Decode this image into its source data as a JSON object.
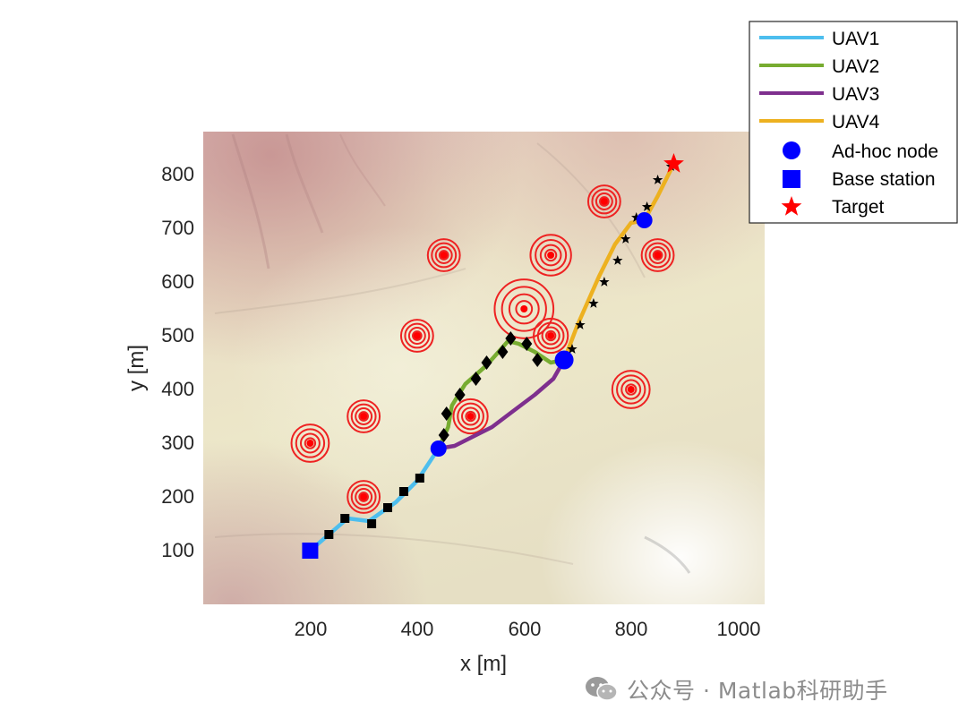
{
  "chart_data": {
    "type": "scatter",
    "xlabel": "x [m]",
    "ylabel": "y [m]",
    "xlim": [
      0,
      1050
    ],
    "ylim": [
      0,
      880
    ],
    "xticks": [
      200,
      400,
      600,
      800,
      1000
    ],
    "yticks": [
      100,
      200,
      300,
      400,
      500,
      600,
      700,
      800
    ],
    "background": "terrain map",
    "legend_position": "top-right",
    "series": [
      {
        "name": "UAV1",
        "kind": "line",
        "color": "#4DBEEE",
        "points": [
          [
            200,
            100
          ],
          [
            270,
            160
          ],
          [
            310,
            155
          ],
          [
            360,
            190
          ],
          [
            400,
            230
          ],
          [
            440,
            290
          ]
        ]
      },
      {
        "name": "UAV2",
        "kind": "line",
        "color": "#77AC30",
        "points": [
          [
            440,
            290
          ],
          [
            458,
            330
          ],
          [
            465,
            370
          ],
          [
            490,
            410
          ],
          [
            530,
            445
          ],
          [
            570,
            490
          ],
          [
            590,
            485
          ],
          [
            620,
            470
          ],
          [
            650,
            450
          ],
          [
            675,
            455
          ]
        ]
      },
      {
        "name": "UAV3",
        "kind": "line",
        "color": "#7E2F8E",
        "points": [
          [
            440,
            290
          ],
          [
            470,
            295
          ],
          [
            500,
            310
          ],
          [
            540,
            330
          ],
          [
            580,
            360
          ],
          [
            620,
            390
          ],
          [
            655,
            420
          ],
          [
            675,
            455
          ]
        ]
      },
      {
        "name": "UAV4",
        "kind": "line",
        "color": "#EDB120",
        "points": [
          [
            675,
            455
          ],
          [
            700,
            520
          ],
          [
            740,
            610
          ],
          [
            770,
            670
          ],
          [
            800,
            710
          ],
          [
            825,
            715
          ],
          [
            850,
            760
          ],
          [
            880,
            820
          ]
        ]
      }
    ],
    "markers": [
      {
        "name": "Ad-hoc node",
        "symbol": "circle",
        "color": "#0000FF",
        "points": [
          [
            440,
            290
          ],
          [
            675,
            455
          ],
          [
            825,
            715
          ]
        ]
      },
      {
        "name": "Base station",
        "symbol": "square",
        "color": "#0000FF",
        "points": [
          [
            200,
            100
          ]
        ]
      },
      {
        "name": "Target",
        "symbol": "star",
        "color": "#FF0000",
        "points": [
          [
            880,
            820
          ]
        ]
      }
    ],
    "waypoints": [
      {
        "symbol": "square",
        "points": [
          [
            235,
            130
          ],
          [
            265,
            160
          ],
          [
            315,
            150
          ],
          [
            345,
            180
          ],
          [
            375,
            210
          ],
          [
            405,
            235
          ]
        ]
      },
      {
        "symbol": "diamond",
        "points": [
          [
            450,
            315
          ],
          [
            455,
            355
          ],
          [
            480,
            390
          ],
          [
            510,
            420
          ],
          [
            530,
            450
          ],
          [
            560,
            470
          ],
          [
            575,
            495
          ],
          [
            605,
            485
          ],
          [
            625,
            455
          ]
        ]
      },
      {
        "symbol": "star",
        "points": [
          [
            690,
            475
          ],
          [
            705,
            520
          ],
          [
            730,
            560
          ],
          [
            750,
            600
          ],
          [
            775,
            640
          ],
          [
            790,
            680
          ],
          [
            810,
            720
          ],
          [
            830,
            740
          ],
          [
            850,
            790
          ],
          [
            875,
            815
          ]
        ]
      }
    ],
    "threats": [
      {
        "center": [
          200,
          300
        ],
        "radius": 35
      },
      {
        "center": [
          300,
          350
        ],
        "radius": 30
      },
      {
        "center": [
          300,
          200
        ],
        "radius": 30
      },
      {
        "center": [
          400,
          500
        ],
        "radius": 30
      },
      {
        "center": [
          450,
          650
        ],
        "radius": 30
      },
      {
        "center": [
          500,
          350
        ],
        "radius": 32
      },
      {
        "center": [
          600,
          550
        ],
        "radius": 55
      },
      {
        "center": [
          650,
          650
        ],
        "radius": 38
      },
      {
        "center": [
          650,
          500
        ],
        "radius": 32
      },
      {
        "center": [
          750,
          750
        ],
        "radius": 30
      },
      {
        "center": [
          850,
          650
        ],
        "radius": 30
      },
      {
        "center": [
          800,
          400
        ],
        "radius": 35
      }
    ]
  },
  "legend": {
    "uav1": "UAV1",
    "uav2": "UAV2",
    "uav3": "UAV3",
    "uav4": "UAV4",
    "adhoc": "Ad-hoc node",
    "base": "Base station",
    "target": "Target"
  },
  "watermark": {
    "text": "公众号 · Matlab科研助手",
    "icon": "wechat-icon"
  }
}
